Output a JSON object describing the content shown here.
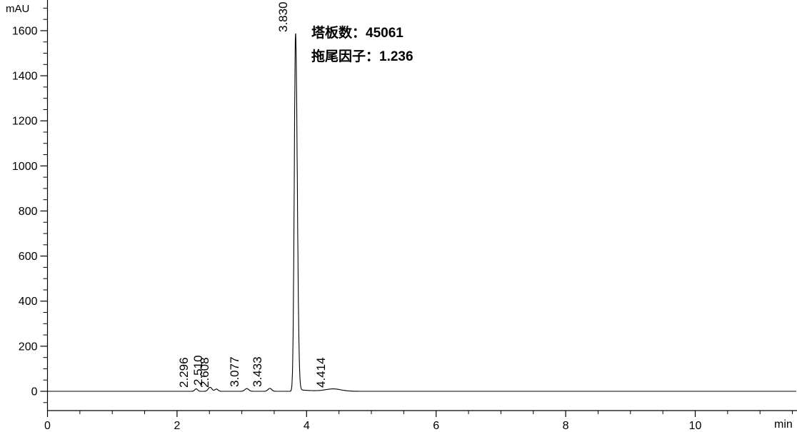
{
  "chart_data": {
    "type": "line",
    "subtype": "hplc-chromatogram",
    "title": "",
    "x_axis": {
      "label": "min",
      "min": 0,
      "max": 11.57,
      "major_ticks": [
        0,
        2,
        4,
        6,
        8,
        10
      ],
      "minor_tick_interval": 0.5
    },
    "y_axis": {
      "label": "mAU",
      "major_ticks": [
        0,
        200,
        400,
        600,
        800,
        1000,
        1200,
        1400,
        1600
      ],
      "minor_tick_interval": 50,
      "top_shown": 1735,
      "bottom_shown": -85
    },
    "grid": false,
    "legend": false,
    "baseline_mAU": 0,
    "trace": {
      "t_start": 0,
      "t_end": 11.56
    },
    "peaks": [
      {
        "label": "2.296",
        "rt_min": 2.296,
        "height_mAU": 11,
        "sigma_min": 0.022
      },
      {
        "label": "2.510",
        "rt_min": 2.51,
        "height_mAU": 18,
        "sigma_min": 0.028
      },
      {
        "label": "2.608",
        "rt_min": 2.608,
        "height_mAU": 10,
        "sigma_min": 0.024
      },
      {
        "label": "3.077",
        "rt_min": 3.077,
        "height_mAU": 12,
        "sigma_min": 0.03
      },
      {
        "label": "3.433",
        "rt_min": 3.433,
        "height_mAU": 13,
        "sigma_min": 0.028
      },
      {
        "label": "3.830",
        "rt_min": 3.83,
        "height_mAU": 1588,
        "sigma_min": 0.02,
        "sigma_trail_min": 0.026,
        "tail_height_mAU": 9,
        "tail_tau_min": 0.22
      },
      {
        "label": "4.414",
        "rt_min": 4.414,
        "height_mAU": 10,
        "sigma_min": 0.12
      }
    ],
    "annotations": [
      {
        "name": "theoretical-plates",
        "text": "塔板数：45061"
      },
      {
        "name": "tailing-factor",
        "text": "拖尾因子：1.236"
      }
    ],
    "colors": {
      "trace": "#000000",
      "axis": "#000000",
      "text": "#000000",
      "background": "#ffffff"
    }
  }
}
